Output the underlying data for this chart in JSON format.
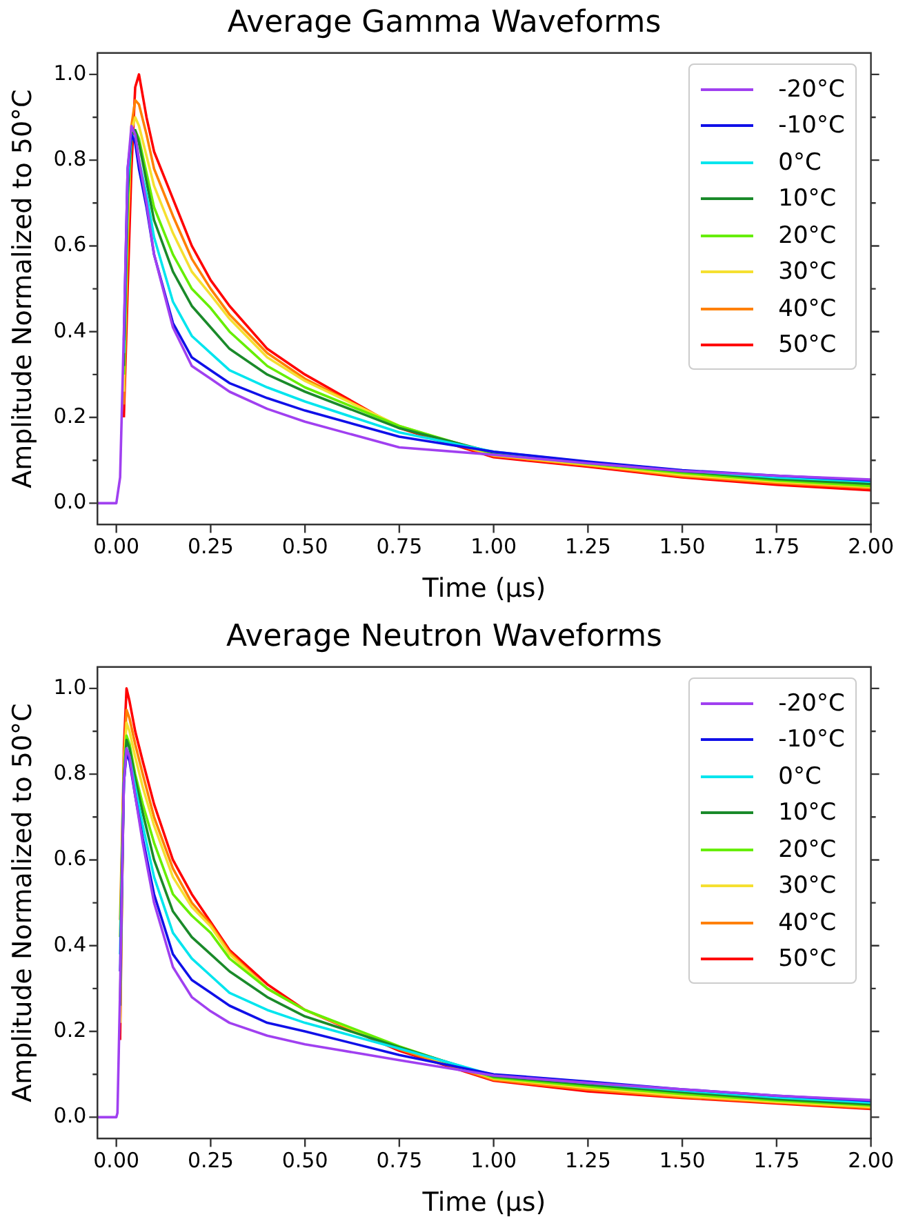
{
  "chart_data": [
    {
      "type": "line",
      "title": "Average Gamma Waveforms",
      "xlabel": "Time (µs)",
      "ylabel": "Amplitude Normalized to 50°C",
      "x": [
        -0.05,
        0,
        0.01,
        0.02,
        0.03,
        0.04,
        0.05,
        0.06,
        0.08,
        0.1,
        0.15,
        0.2,
        0.25,
        0.3,
        0.4,
        0.5,
        0.75,
        1.0,
        1.25,
        1.5,
        1.75,
        2.0
      ],
      "series": [
        {
          "name": "-20°C",
          "color": "#a040f0",
          "values": [
            0,
            0,
            0.06,
            0.4,
            0.78,
            0.88,
            0.86,
            0.8,
            0.7,
            0.58,
            0.41,
            0.32,
            0.29,
            0.26,
            0.22,
            0.19,
            0.13,
            0.113,
            0.093,
            0.075,
            0.064,
            0.055
          ]
        },
        {
          "name": "-10°C",
          "color": "#1010e8",
          "values": [
            null,
            null,
            null,
            0.38,
            0.78,
            0.86,
            0.84,
            0.78,
            0.69,
            0.58,
            0.42,
            0.34,
            0.31,
            0.28,
            0.245,
            0.216,
            0.155,
            0.12,
            0.097,
            0.077,
            0.064,
            0.053
          ]
        },
        {
          "name": "0°C",
          "color": "#00e5ee",
          "values": [
            null,
            null,
            null,
            0.35,
            0.75,
            0.86,
            0.85,
            0.8,
            0.72,
            0.62,
            0.47,
            0.39,
            0.35,
            0.31,
            0.27,
            0.237,
            0.165,
            0.12,
            0.096,
            0.076,
            0.06,
            0.05
          ]
        },
        {
          "name": "10°C",
          "color": "#1a8a2a",
          "values": [
            null,
            null,
            null,
            0.32,
            0.72,
            0.86,
            0.87,
            0.84,
            0.75,
            0.66,
            0.54,
            0.46,
            0.41,
            0.36,
            0.3,
            0.26,
            0.175,
            0.118,
            0.094,
            0.074,
            0.056,
            0.045
          ]
        },
        {
          "name": "20°C",
          "color": "#66ee00",
          "values": [
            null,
            null,
            null,
            0.3,
            0.7,
            0.86,
            0.87,
            0.85,
            0.77,
            0.69,
            0.58,
            0.5,
            0.455,
            0.4,
            0.32,
            0.27,
            0.18,
            0.115,
            0.092,
            0.07,
            0.053,
            0.04
          ]
        },
        {
          "name": "30°C",
          "color": "#f5e030",
          "values": [
            null,
            null,
            null,
            0.26,
            0.65,
            0.87,
            0.9,
            0.88,
            0.81,
            0.74,
            0.63,
            0.54,
            0.486,
            0.43,
            0.34,
            0.285,
            0.18,
            0.112,
            0.09,
            0.066,
            0.05,
            0.038
          ]
        },
        {
          "name": "40°C",
          "color": "#ff8000",
          "values": [
            null,
            null,
            null,
            0.23,
            0.6,
            0.88,
            0.94,
            0.93,
            0.86,
            0.78,
            0.67,
            0.57,
            0.5,
            0.44,
            0.35,
            0.29,
            0.178,
            0.11,
            0.088,
            0.063,
            0.047,
            0.035
          ]
        },
        {
          "name": "50°C",
          "color": "#ff0000",
          "values": [
            null,
            null,
            null,
            0.2,
            0.5,
            0.78,
            0.97,
            1.0,
            0.9,
            0.82,
            0.71,
            0.6,
            0.52,
            0.46,
            0.36,
            0.3,
            0.175,
            0.107,
            0.085,
            0.06,
            0.043,
            0.03
          ]
        }
      ],
      "xlim": [
        -0.05,
        2.0
      ],
      "ylim": [
        -0.05,
        1.05
      ],
      "xticks": [
        {
          "value": 0,
          "label": "0.00"
        },
        0.25,
        {
          "value": 0.5,
          "label": "0.50"
        },
        0.75,
        {
          "value": 1,
          "label": "1.00"
        },
        1.25,
        {
          "value": 1.5,
          "label": "1.50"
        },
        1.75,
        {
          "value": 2,
          "label": "2.00"
        }
      ],
      "yticks": [
        {
          "value": 0,
          "label": "0.0"
        },
        {
          "value": 0.1,
          "label": null
        },
        0.2,
        {
          "value": 0.3,
          "label": null
        },
        0.4,
        {
          "value": 0.5,
          "label": null
        },
        0.6,
        {
          "value": 0.7,
          "label": null
        },
        0.8,
        {
          "value": 0.9,
          "label": null
        },
        {
          "value": 1,
          "label": "1.0"
        }
      ],
      "grid": false,
      "legend": "top right",
      "marker": "none",
      "line_style": "solid"
    },
    {
      "type": "line",
      "title": "Average Neutron Waveforms",
      "xlabel": "Time (µs)",
      "ylabel": "Amplitude Normalized to 50°C",
      "x": [
        -0.05,
        0,
        0.003,
        0.01,
        0.02,
        0.027,
        0.035,
        0.05,
        0.07,
        0.1,
        0.15,
        0.2,
        0.25,
        0.3,
        0.4,
        0.5,
        0.75,
        1.0,
        1.25,
        1.5,
        1.75,
        2.0
      ],
      "series": [
        {
          "name": "-20°C",
          "color": "#a040f0",
          "values": [
            0,
            0,
            0.01,
            0.3,
            0.78,
            0.86,
            0.84,
            0.75,
            0.64,
            0.5,
            0.35,
            0.28,
            0.247,
            0.22,
            0.19,
            0.17,
            0.133,
            0.097,
            0.08,
            0.065,
            0.05,
            0.04
          ]
        },
        {
          "name": "-10°C",
          "color": "#1010e8",
          "values": [
            null,
            null,
            null,
            0.34,
            0.78,
            0.85,
            0.83,
            0.75,
            0.65,
            0.52,
            0.38,
            0.32,
            0.29,
            0.26,
            0.22,
            0.2,
            0.145,
            0.1,
            0.083,
            0.065,
            0.05,
            0.038
          ]
        },
        {
          "name": "0°C",
          "color": "#00e5ee",
          "values": [
            null,
            null,
            null,
            0.38,
            0.78,
            0.86,
            0.84,
            0.77,
            0.68,
            0.56,
            0.43,
            0.37,
            0.33,
            0.29,
            0.25,
            0.22,
            0.16,
            0.098,
            0.08,
            0.062,
            0.046,
            0.034
          ]
        },
        {
          "name": "10°C",
          "color": "#1a8a2a",
          "values": [
            null,
            null,
            null,
            0.26,
            0.79,
            0.88,
            0.86,
            0.79,
            0.71,
            0.6,
            0.48,
            0.42,
            0.38,
            0.34,
            0.28,
            0.235,
            0.163,
            0.095,
            0.076,
            0.058,
            0.042,
            0.03
          ]
        },
        {
          "name": "20°C",
          "color": "#66ee00",
          "values": [
            null,
            null,
            null,
            0.42,
            0.8,
            0.89,
            0.87,
            0.8,
            0.73,
            0.64,
            0.52,
            0.47,
            0.43,
            0.37,
            0.3,
            0.25,
            0.165,
            0.092,
            0.072,
            0.054,
            0.039,
            0.027
          ]
        },
        {
          "name": "30°C",
          "color": "#f5e030",
          "values": [
            null,
            null,
            null,
            0.22,
            0.82,
            0.92,
            0.9,
            0.84,
            0.77,
            0.68,
            0.56,
            0.49,
            0.445,
            0.38,
            0.3,
            0.25,
            0.162,
            0.09,
            0.068,
            0.05,
            0.036,
            0.024
          ]
        },
        {
          "name": "40°C",
          "color": "#ff8000",
          "values": [
            null,
            null,
            null,
            0.46,
            0.84,
            0.95,
            0.93,
            0.87,
            0.8,
            0.7,
            0.58,
            0.5,
            0.45,
            0.385,
            0.3,
            0.25,
            0.158,
            0.087,
            0.064,
            0.047,
            0.034,
            0.021
          ]
        },
        {
          "name": "50°C",
          "color": "#ff0000",
          "values": [
            null,
            null,
            null,
            0.18,
            0.86,
            1.0,
            0.97,
            0.9,
            0.83,
            0.73,
            0.6,
            0.52,
            0.455,
            0.39,
            0.31,
            0.25,
            0.155,
            0.085,
            0.06,
            0.045,
            0.032,
            0.019
          ]
        }
      ],
      "xlim": [
        -0.05,
        2.0
      ],
      "ylim": [
        -0.05,
        1.05
      ],
      "xticks": [
        {
          "value": 0,
          "label": "0.00"
        },
        0.25,
        {
          "value": 0.5,
          "label": "0.50"
        },
        0.75,
        {
          "value": 1,
          "label": "1.00"
        },
        1.25,
        {
          "value": 1.5,
          "label": "1.50"
        },
        1.75,
        {
          "value": 2,
          "label": "2.00"
        }
      ],
      "yticks": [
        {
          "value": 0,
          "label": "0.0"
        },
        {
          "value": 0.1,
          "label": null
        },
        0.2,
        {
          "value": 0.3,
          "label": null
        },
        0.4,
        {
          "value": 0.5,
          "label": null
        },
        0.6,
        {
          "value": 0.7,
          "label": null
        },
        0.8,
        {
          "value": 0.9,
          "label": null
        },
        {
          "value": 1,
          "label": "1.0"
        }
      ],
      "grid": false,
      "legend": "top right",
      "marker": "none",
      "line_style": "solid"
    }
  ]
}
